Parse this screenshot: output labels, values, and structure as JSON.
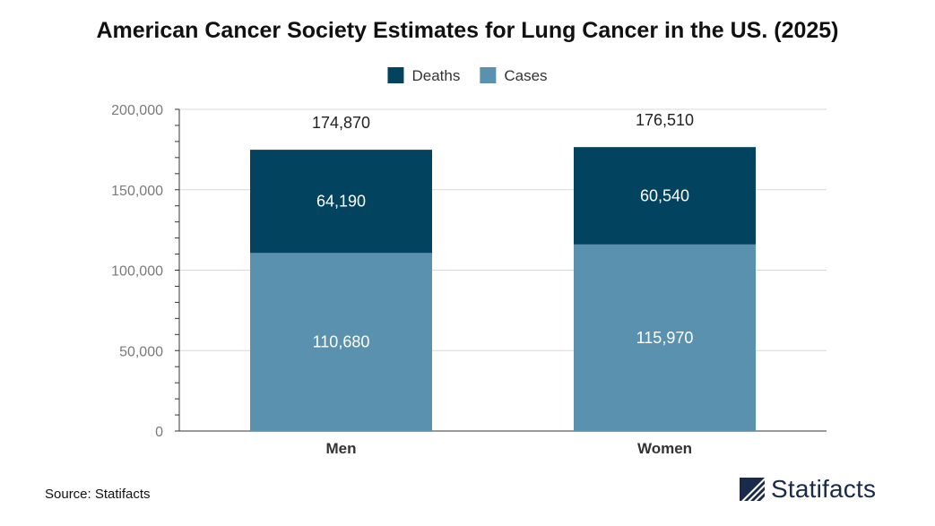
{
  "chart_data": {
    "type": "bar",
    "stacked": true,
    "title": "American Cancer Society Estimates for Lung Cancer in the US. (2025)",
    "categories": [
      "Men",
      "Women"
    ],
    "series": [
      {
        "name": "Cases",
        "color": "#5a91ae",
        "values": [
          110680,
          115970
        ],
        "labels": [
          "110,680",
          "115,970"
        ]
      },
      {
        "name": "Deaths",
        "color": "#024360",
        "values": [
          64190,
          60540
        ],
        "labels": [
          "64,190",
          "60,540"
        ]
      }
    ],
    "totals": [
      174870,
      176510
    ],
    "total_labels": [
      "174,870",
      "176,510"
    ],
    "legend": {
      "position": "top",
      "entries": [
        {
          "name": "Deaths",
          "color": "#024360"
        },
        {
          "name": "Cases",
          "color": "#5a91ae"
        }
      ]
    },
    "yticks": [
      0,
      50000,
      100000,
      150000,
      200000
    ],
    "ytick_labels": [
      "0",
      "50,000",
      "100,000",
      "150,000",
      "200,000"
    ],
    "ylim": [
      0,
      200000
    ],
    "xlabel": "",
    "ylabel": "",
    "grid": true
  },
  "footer": {
    "source": "Source: Statifacts",
    "brand": "Statifacts"
  }
}
